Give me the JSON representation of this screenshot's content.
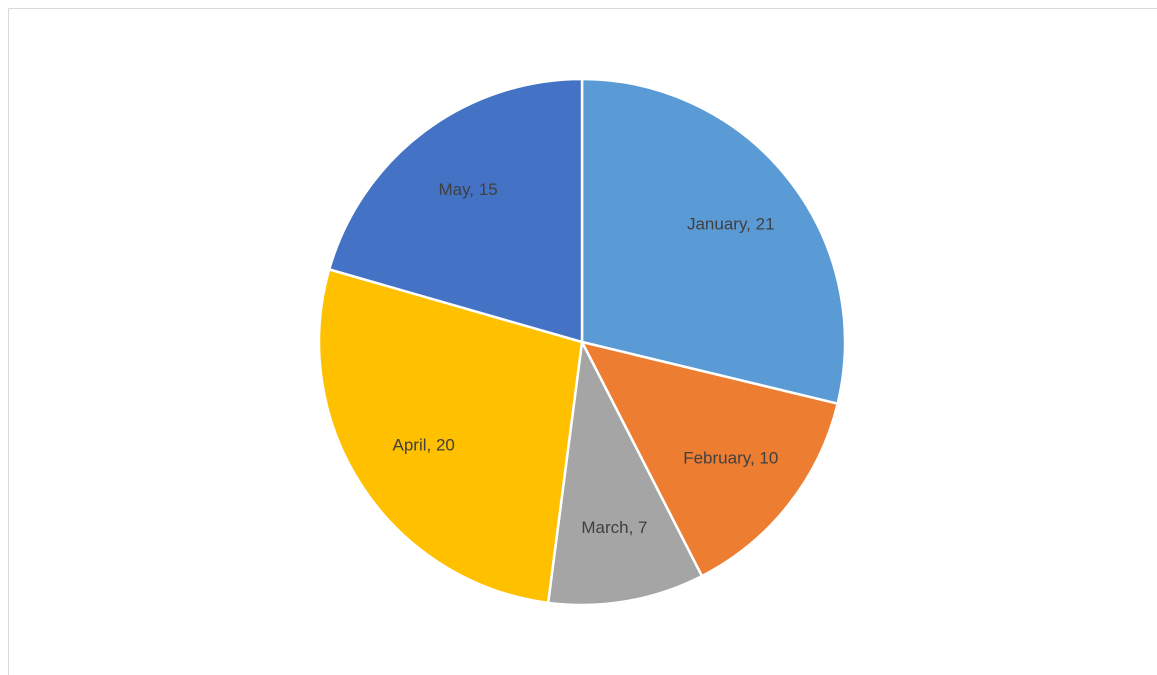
{
  "chart_data": {
    "type": "pie",
    "categories": [
      "January",
      "February",
      "March",
      "April",
      "May"
    ],
    "values": [
      21,
      10,
      7,
      20,
      15
    ],
    "value_labels": [
      "January, 21",
      "February, 10",
      "March, 7",
      "April, 20",
      "May, 15"
    ],
    "colors": [
      "#5b9bd5",
      "#ed7d31",
      "#a5a5a5",
      "#ffc000",
      "#4472c4"
    ]
  }
}
